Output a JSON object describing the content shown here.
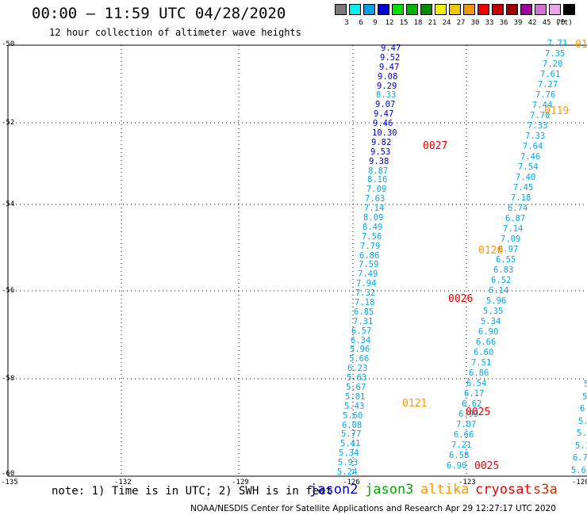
{
  "title": "00:00 — 11:59 UTC 04/28/2020",
  "subtitle": "12 hour collection of altimeter wave heights",
  "legend": {
    "unit": "(ft)",
    "bins": [
      {
        "label": "3",
        "color": "#7a7a7a"
      },
      {
        "label": "6",
        "color": "#00f0f0"
      },
      {
        "label": "9",
        "color": "#00a0f0"
      },
      {
        "label": "12",
        "color": "#0000d8"
      },
      {
        "label": "15",
        "color": "#00e000"
      },
      {
        "label": "18",
        "color": "#00b400"
      },
      {
        "label": "21",
        "color": "#008c00"
      },
      {
        "label": "24",
        "color": "#f0f000"
      },
      {
        "label": "27",
        "color": "#f0c800"
      },
      {
        "label": "30",
        "color": "#f09600"
      },
      {
        "label": "33",
        "color": "#f00000"
      },
      {
        "label": "36",
        "color": "#c80000"
      },
      {
        "label": "39",
        "color": "#a00000"
      },
      {
        "label": "42",
        "color": "#a000a0"
      },
      {
        "label": "45",
        "color": "#d070d0"
      },
      {
        "label": "70",
        "color": "#f0a0f0"
      },
      {
        "label": "",
        "color": "#000000"
      }
    ]
  },
  "axes": {
    "lat_labels": [
      "-50",
      "-52",
      "-54",
      "-56",
      "-58",
      "-60"
    ],
    "lon_labels": [
      "-135",
      "-132",
      "-129",
      "-126",
      "-123",
      "-120"
    ]
  },
  "colors": {
    "jason2": "#0000cc",
    "jason3": "#00aa00",
    "altika": "#ff9900",
    "cryosat": "#ee0000",
    "s3a": "#cc3300",
    "swh_9_12": "#0000cc",
    "swh_6_9": "#00aaee"
  },
  "tracks": {
    "jason2": [
      "9.47",
      "9.52",
      "9.47",
      "9.08",
      "9.29",
      "8.33",
      "9.07",
      "9.47",
      "9.46",
      "10.30",
      "9.82",
      "9.53",
      "9.38",
      "8.87",
      "8.16",
      "7.09",
      "7.63",
      "7.14",
      "8.09",
      "8.49",
      "7.56",
      "7.79",
      "6.86",
      "7.59",
      "7.49",
      "7.94",
      "7.32",
      "7.18",
      "6.85",
      "7.31",
      "6.57",
      "6.34",
      "5.96",
      "5.66",
      "6.23",
      "5.63",
      "5.67",
      "5.81",
      "5.43",
      "5.60",
      "6.08",
      "5.77",
      "5.41",
      "5.34",
      "5.93",
      "5.24"
    ],
    "altika_a": [
      "7.71",
      "7.35",
      "7.20",
      "7.61",
      "7.27",
      "7.76",
      "7.44",
      "7.70",
      "7.33",
      "7.33",
      "7.64",
      "7.46",
      "7.54",
      "7.40",
      "7.45",
      "7.18",
      "6.74",
      "6.87",
      "7.14",
      "7.09",
      "6.97",
      "6.55",
      "6.83",
      "6.52",
      "6.14",
      "5.96",
      "5.35",
      "5.34",
      "6.90",
      "6.66",
      "6.60",
      "7.51",
      "6.86",
      "6.54",
      "6.17",
      "6.62",
      "6.99",
      "7.07",
      "6.66",
      "7.21",
      "6.58",
      "6.90"
    ],
    "right_edge": [
      "5.",
      "5.",
      "6.",
      "5.",
      "5.4",
      "5.1",
      "6.7",
      "5.6"
    ]
  },
  "passes": [
    {
      "label": "0119",
      "mission": "altika"
    },
    {
      "label": "01",
      "mission": "altika"
    },
    {
      "label": "0027",
      "mission": "cryosat"
    },
    {
      "label": "0120",
      "mission": "altika"
    },
    {
      "label": "0026",
      "mission": "cryosat"
    },
    {
      "label": "0121",
      "mission": "altika"
    },
    {
      "label": "0025",
      "mission": "cryosat"
    },
    {
      "label": "0025",
      "mission": "cryosat"
    }
  ],
  "note": "note: 1) Time is in UTC; 2) SWH is in feet",
  "missions": [
    "jason2",
    "jason3",
    "altika",
    "cryosat",
    "s3a"
  ],
  "credit": "NOAA/NESDIS Center for Satellite Applications and Research   Apr 29 12:27:17 UTC 2020"
}
